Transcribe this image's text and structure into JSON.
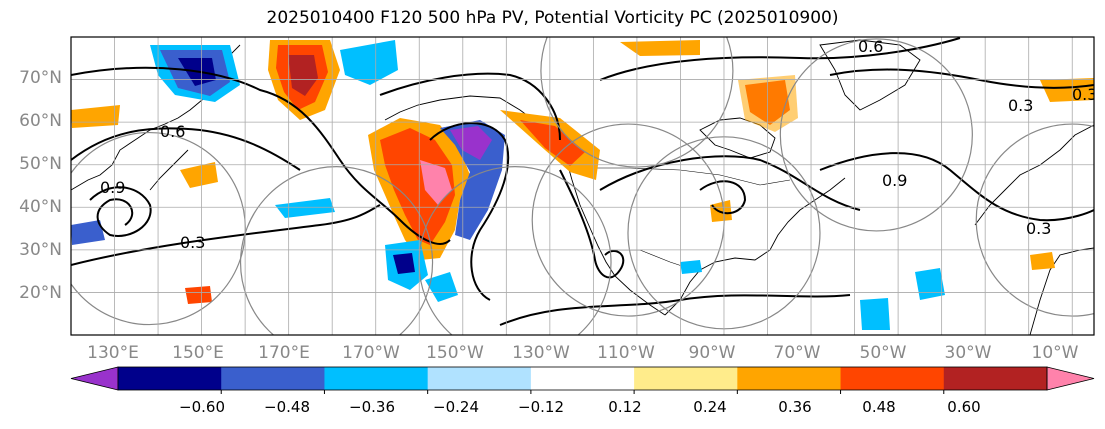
{
  "title": "2025010400 F120 500 hPa PV, Potential Vorticity PC (2025010900)",
  "colors": {
    "background": "#ffffff",
    "grid": "#aaaaaa",
    "coast": "#000000",
    "contour": "#000000",
    "circle": "#888888",
    "axis_label": "#888888"
  },
  "map": {
    "projection": "cylindrical",
    "lon_range": [
      120,
      355
    ],
    "lat_range": [
      10,
      80
    ],
    "lat_labels": [
      "70°N",
      "60°N",
      "50°N",
      "40°N",
      "30°N",
      "20°N"
    ],
    "lon_labels": [
      "130°E",
      "150°E",
      "170°E",
      "170°W",
      "150°W",
      "130°W",
      "110°W",
      "90°W",
      "70°W",
      "50°W",
      "30°W",
      "10°W"
    ],
    "contour_labels": [
      "0.6",
      "0.3",
      "0.9",
      "0.3",
      "0.9",
      "0.3",
      "0.6",
      "0.3"
    ],
    "circle_centers": [
      {
        "lon": 138,
        "lat": 35
      },
      {
        "lon": 181,
        "lat": 27
      },
      {
        "lon": 222,
        "lat": 27
      },
      {
        "lon": 248,
        "lat": 37
      },
      {
        "lon": 270,
        "lat": 34
      },
      {
        "lon": 305,
        "lat": 57
      },
      {
        "lon": 350,
        "lat": 37
      },
      {
        "lon": 250,
        "lat": 72
      }
    ]
  },
  "colorbar": {
    "colors": [
      "#9932cc",
      "#00008b",
      "#3a5fcd",
      "#00bfff",
      "#b0e2ff",
      "#ffffff",
      "#ffec8b",
      "#ffa500",
      "#ff4500",
      "#b22222",
      "#ff82ab"
    ],
    "ticks": [
      "−0.60",
      "−0.48",
      "−0.36",
      "−0.24",
      "−0.12",
      "0.12",
      "0.24",
      "0.36",
      "0.48",
      "0.60"
    ]
  }
}
